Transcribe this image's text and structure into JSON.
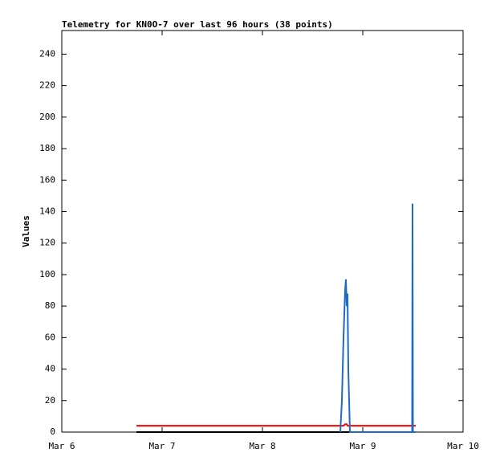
{
  "chart_data": {
    "type": "line",
    "title": "Telemetry for KN0O-7 over last 96 hours (38 points)",
    "ylabel": "Values",
    "x": [
      0.744,
      1.5,
      2.5,
      2.776,
      2.792,
      2.808,
      2.824,
      2.832,
      2.84,
      2.848,
      2.856,
      2.872,
      2.9,
      3.2,
      3.45,
      3.492,
      3.496,
      3.5,
      3.528
    ],
    "series": [
      {
        "name": "black",
        "color": "#000000",
        "values": [
          0,
          0,
          0,
          0,
          0,
          0,
          0,
          0,
          0,
          0,
          0,
          0,
          0,
          0,
          0,
          0,
          0,
          0,
          0
        ]
      },
      {
        "name": "red",
        "color": "#ff0000",
        "values": [
          4,
          4,
          4,
          4,
          4,
          4,
          5,
          5,
          5,
          4,
          4,
          4,
          4,
          4,
          4,
          4,
          4,
          4,
          4
        ]
      },
      {
        "name": "blue",
        "color": "#1e6bbf",
        "values": [
          null,
          null,
          null,
          0,
          20,
          60,
          90,
          97,
          80,
          88,
          40,
          0,
          0,
          0,
          0,
          0,
          145,
          0,
          0
        ]
      }
    ],
    "xlim": [
      0,
      4
    ],
    "xticks": [
      {
        "value": 0,
        "label": "Mar 6"
      },
      {
        "value": 1,
        "label": "Mar 7"
      },
      {
        "value": 2,
        "label": "Mar 8"
      },
      {
        "value": 3,
        "label": "Mar 9"
      },
      {
        "value": 4,
        "label": "Mar 10"
      }
    ],
    "ylim": [
      0,
      255
    ],
    "yticks": [
      0,
      20,
      40,
      60,
      80,
      100,
      120,
      140,
      160,
      180,
      200,
      220,
      240
    ],
    "grid": false
  }
}
